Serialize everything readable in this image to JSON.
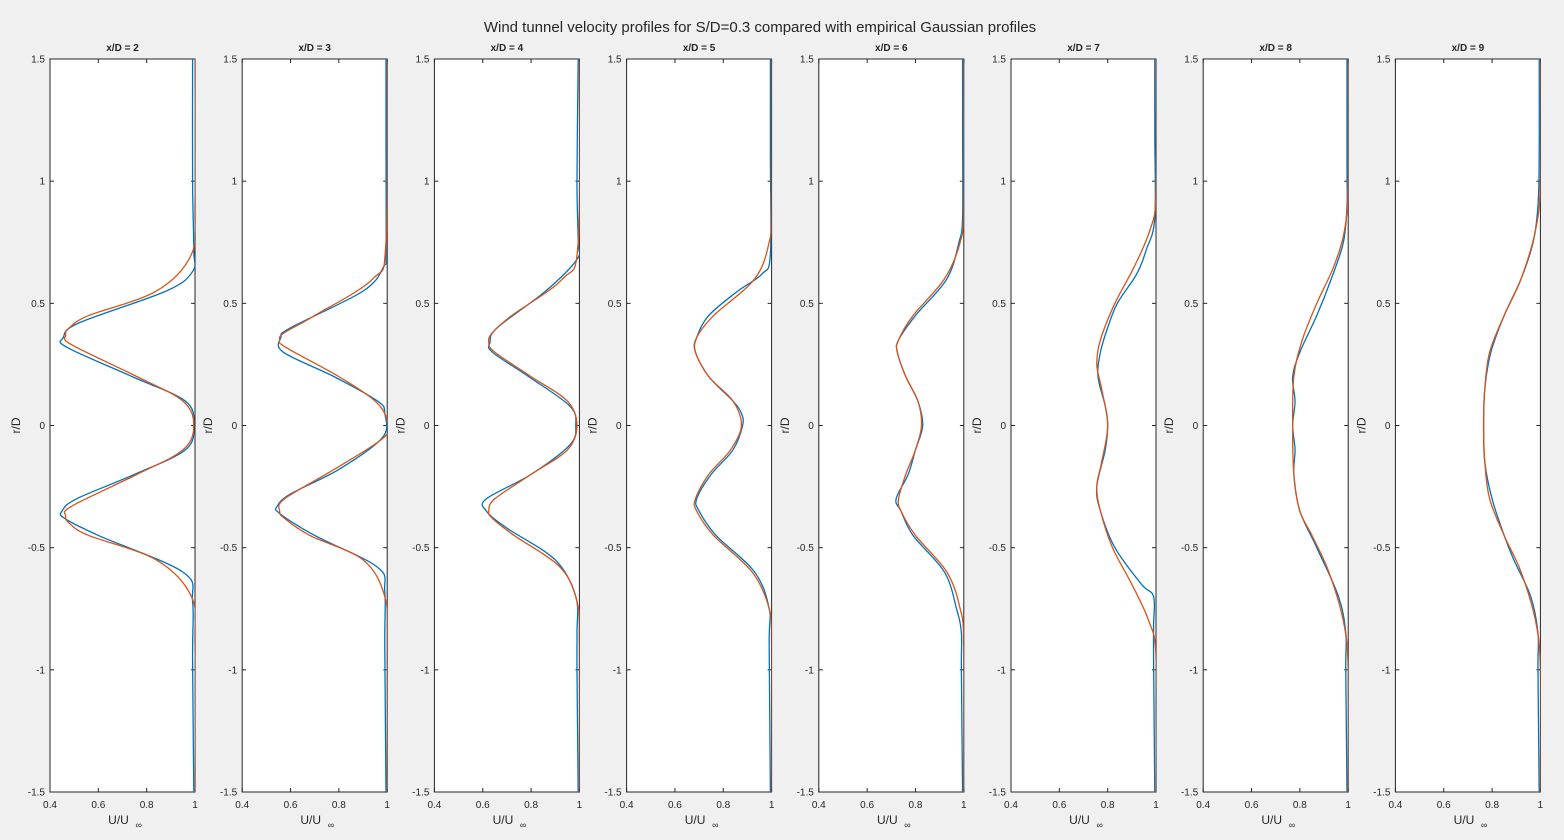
{
  "figure": {
    "title": "Wind tunnel velocity profiles for S/D=0.3 compared with empirical Gaussian profiles"
  },
  "colors": {
    "background": "#f0f0f0",
    "axes_bg": "#ffffff",
    "axis": "#262626",
    "measured": "#0072bd",
    "gaussian": "#d95319"
  },
  "chart_data": {
    "type": "line",
    "panel_count": 8,
    "grid": false,
    "legend": "none",
    "xlim": [
      0.4,
      1.0
    ],
    "ylim": [
      -1.5,
      1.5
    ],
    "xticks": [
      0.4,
      0.6,
      0.8,
      1.0
    ],
    "xtick_labels": [
      "0.4",
      "0.6",
      "0.8",
      "1"
    ],
    "yticks": [
      -1.5,
      -1,
      -0.5,
      0,
      0.5,
      1,
      1.5
    ],
    "ytick_labels": [
      "-1.5",
      "-1",
      "-0.5",
      "0",
      "0.5",
      "1",
      "1.5"
    ],
    "xlabel": "U/U",
    "xlabel_subscript": "∞",
    "ylabel": "r/D",
    "panels": [
      {
        "title": "x/D = 2",
        "gaussian": {
          "r": [
            -1.5,
            -0.9,
            -0.7,
            -0.55,
            -0.45,
            -0.4,
            -0.37,
            -0.33,
            -0.2,
            -0.1,
            0,
            0.1,
            0.2,
            0.33,
            0.37,
            0.4,
            0.45,
            0.55,
            0.7,
            0.9,
            1.5
          ],
          "u": [
            1.0,
            1.0,
            0.985,
            0.84,
            0.56,
            0.48,
            0.465,
            0.49,
            0.76,
            0.95,
            0.995,
            0.95,
            0.76,
            0.49,
            0.465,
            0.48,
            0.56,
            0.84,
            0.985,
            1.0,
            1.0
          ]
        },
        "measured": {
          "r": [
            -1.5,
            -0.95,
            -0.72,
            -0.6,
            -0.45,
            -0.38,
            -0.35,
            -0.3,
            -0.2,
            -0.1,
            0,
            0.1,
            0.2,
            0.32,
            0.36,
            0.42,
            0.55,
            0.63,
            0.72,
            1.0,
            1.5
          ],
          "u": [
            0.995,
            0.99,
            0.99,
            0.95,
            0.6,
            0.46,
            0.45,
            0.51,
            0.75,
            0.96,
            0.995,
            0.96,
            0.74,
            0.47,
            0.455,
            0.52,
            0.88,
            0.99,
            0.995,
            0.99,
            0.99
          ]
        }
      },
      {
        "title": "x/D = 3",
        "gaussian": {
          "r": [
            -1.5,
            -0.9,
            -0.7,
            -0.55,
            -0.45,
            -0.38,
            -0.35,
            -0.3,
            -0.18,
            -0.05,
            0.02,
            0.1,
            0.2,
            0.32,
            0.35,
            0.38,
            0.45,
            0.6,
            0.75,
            1.5
          ],
          "u": [
            1.0,
            1.0,
            0.99,
            0.9,
            0.68,
            0.575,
            0.555,
            0.575,
            0.78,
            0.985,
            1.0,
            0.95,
            0.8,
            0.58,
            0.555,
            0.575,
            0.7,
            0.94,
            0.995,
            1.0
          ]
        },
        "measured": {
          "r": [
            -1.5,
            -0.9,
            -0.68,
            -0.58,
            -0.45,
            -0.36,
            -0.33,
            -0.28,
            -0.18,
            -0.05,
            0.05,
            0.1,
            0.2,
            0.3,
            0.36,
            0.4,
            0.55,
            0.65,
            0.72,
            1.2,
            1.5
          ],
          "u": [
            0.995,
            0.99,
            0.99,
            0.96,
            0.7,
            0.555,
            0.545,
            0.6,
            0.8,
            0.98,
            0.99,
            0.96,
            0.78,
            0.57,
            0.56,
            0.6,
            0.9,
            0.985,
            0.995,
            0.995,
            0.995
          ]
        }
      },
      {
        "title": "x/D = 4",
        "gaussian": {
          "r": [
            -1.5,
            -0.9,
            -0.72,
            -0.58,
            -0.45,
            -0.38,
            -0.35,
            -0.3,
            -0.2,
            -0.1,
            0,
            0.1,
            0.2,
            0.3,
            0.34,
            0.38,
            0.45,
            0.6,
            0.75,
            1.5
          ],
          "u": [
            1.0,
            1.0,
            0.99,
            0.92,
            0.73,
            0.64,
            0.625,
            0.65,
            0.8,
            0.95,
            0.99,
            0.95,
            0.8,
            0.65,
            0.625,
            0.64,
            0.72,
            0.93,
            0.995,
            1.0
          ]
        },
        "measured": {
          "r": [
            -1.5,
            -1.0,
            -0.85,
            -0.7,
            -0.55,
            -0.42,
            -0.35,
            -0.3,
            -0.2,
            -0.08,
            0,
            0.08,
            0.2,
            0.3,
            0.34,
            0.4,
            0.55,
            0.68,
            0.75,
            1.0,
            1.5
          ],
          "u": [
            0.995,
            0.99,
            0.99,
            0.985,
            0.9,
            0.7,
            0.615,
            0.615,
            0.8,
            0.96,
            0.985,
            0.96,
            0.79,
            0.64,
            0.63,
            0.66,
            0.86,
            0.99,
            0.995,
            0.99,
            0.995
          ]
        }
      },
      {
        "title": "x/D = 5",
        "gaussian": {
          "r": [
            -1.5,
            -0.9,
            -0.75,
            -0.6,
            -0.45,
            -0.35,
            -0.3,
            -0.2,
            -0.1,
            0,
            0.1,
            0.2,
            0.3,
            0.36,
            0.45,
            0.6,
            0.75,
            0.9,
            1.5
          ],
          "u": [
            1.0,
            1.0,
            0.99,
            0.92,
            0.76,
            0.69,
            0.685,
            0.74,
            0.83,
            0.875,
            0.84,
            0.74,
            0.685,
            0.69,
            0.76,
            0.93,
            0.99,
            1.0,
            1.0
          ]
        },
        "measured": {
          "r": [
            -1.5,
            -0.9,
            -0.75,
            -0.6,
            -0.45,
            -0.35,
            -0.3,
            -0.2,
            -0.1,
            0,
            0.05,
            0.1,
            0.2,
            0.3,
            0.36,
            0.45,
            0.55,
            0.62,
            0.7,
            1.1,
            1.5
          ],
          "u": [
            0.995,
            0.99,
            0.99,
            0.93,
            0.77,
            0.7,
            0.69,
            0.75,
            0.84,
            0.88,
            0.875,
            0.84,
            0.74,
            0.685,
            0.69,
            0.74,
            0.86,
            0.96,
            0.995,
            0.995,
            0.995
          ]
        }
      },
      {
        "title": "x/D = 6",
        "gaussian": {
          "r": [
            -1.5,
            -0.9,
            -0.75,
            -0.6,
            -0.45,
            -0.35,
            -0.3,
            -0.2,
            -0.1,
            0,
            0.1,
            0.2,
            0.3,
            0.35,
            0.45,
            0.6,
            0.75,
            0.9,
            1.5
          ],
          "u": [
            1.0,
            1.0,
            0.985,
            0.93,
            0.8,
            0.74,
            0.73,
            0.76,
            0.8,
            0.825,
            0.81,
            0.76,
            0.725,
            0.73,
            0.79,
            0.92,
            0.985,
            1.0,
            1.0
          ]
        },
        "measured": {
          "r": [
            -1.5,
            -1.0,
            -0.85,
            -0.75,
            -0.6,
            -0.45,
            -0.35,
            -0.3,
            -0.2,
            -0.1,
            0,
            0.1,
            0.2,
            0.3,
            0.35,
            0.45,
            0.6,
            0.75,
            0.85,
            1.2,
            1.5
          ],
          "u": [
            0.995,
            0.99,
            0.99,
            0.97,
            0.92,
            0.79,
            0.74,
            0.72,
            0.77,
            0.8,
            0.83,
            0.81,
            0.76,
            0.725,
            0.73,
            0.8,
            0.93,
            0.98,
            0.995,
            0.995,
            0.995
          ]
        }
      },
      {
        "title": "x/D = 7",
        "gaussian": {
          "r": [
            -1.5,
            -0.95,
            -0.8,
            -0.65,
            -0.5,
            -0.35,
            -0.25,
            -0.15,
            0,
            0.15,
            0.25,
            0.35,
            0.5,
            0.65,
            0.8,
            0.95,
            1.5
          ],
          "u": [
            1.0,
            1.0,
            0.97,
            0.9,
            0.82,
            0.77,
            0.755,
            0.775,
            0.8,
            0.775,
            0.755,
            0.77,
            0.83,
            0.91,
            0.975,
            1.0,
            1.0
          ]
        },
        "measured": {
          "r": [
            -1.5,
            -0.95,
            -0.82,
            -0.7,
            -0.65,
            -0.5,
            -0.35,
            -0.25,
            -0.1,
            0,
            0.08,
            0.2,
            0.3,
            0.4,
            0.5,
            0.62,
            0.72,
            0.85,
            1.2,
            1.5
          ],
          "u": [
            0.995,
            0.99,
            0.99,
            0.99,
            0.94,
            0.83,
            0.77,
            0.755,
            0.79,
            0.8,
            0.79,
            0.76,
            0.77,
            0.8,
            0.84,
            0.92,
            0.96,
            0.995,
            0.995,
            0.995
          ]
        }
      },
      {
        "title": "x/D = 8",
        "gaussian": {
          "r": [
            -1.5,
            -1.0,
            -0.8,
            -0.6,
            -0.45,
            -0.35,
            -0.2,
            0,
            0.2,
            0.35,
            0.5,
            0.65,
            0.8,
            1.0,
            1.5
          ],
          "u": [
            1.0,
            1.0,
            0.98,
            0.92,
            0.85,
            0.8,
            0.775,
            0.77,
            0.775,
            0.81,
            0.87,
            0.94,
            0.985,
            1.0,
            1.0
          ]
        },
        "measured": {
          "r": [
            -1.5,
            -1.0,
            -0.85,
            -0.7,
            -0.5,
            -0.35,
            -0.2,
            -0.1,
            0,
            0.1,
            0.2,
            0.3,
            0.45,
            0.6,
            0.75,
            0.9,
            1.05,
            1.5
          ],
          "u": [
            0.995,
            0.99,
            0.99,
            0.96,
            0.87,
            0.8,
            0.775,
            0.78,
            0.77,
            0.78,
            0.77,
            0.8,
            0.87,
            0.93,
            0.98,
            0.995,
            0.995,
            0.995
          ]
        }
      },
      {
        "title": "x/D = 9",
        "gaussian": {
          "r": [
            -1.5,
            -1.0,
            -0.8,
            -0.6,
            -0.45,
            -0.3,
            -0.15,
            0,
            0.15,
            0.3,
            0.45,
            0.6,
            0.8,
            1.0,
            1.5
          ],
          "u": [
            1.0,
            1.0,
            0.98,
            0.92,
            0.85,
            0.79,
            0.77,
            0.765,
            0.77,
            0.79,
            0.85,
            0.92,
            0.98,
            1.0,
            1.0
          ]
        },
        "measured": {
          "r": [
            -1.5,
            -1.0,
            -0.85,
            -0.7,
            -0.55,
            -0.45,
            -0.3,
            -0.15,
            0,
            0.15,
            0.3,
            0.45,
            0.6,
            0.75,
            0.9,
            1.1,
            1.5
          ],
          "u": [
            0.995,
            0.99,
            0.99,
            0.96,
            0.89,
            0.85,
            0.8,
            0.77,
            0.765,
            0.77,
            0.795,
            0.85,
            0.92,
            0.97,
            0.99,
            0.995,
            0.995
          ]
        }
      }
    ]
  }
}
